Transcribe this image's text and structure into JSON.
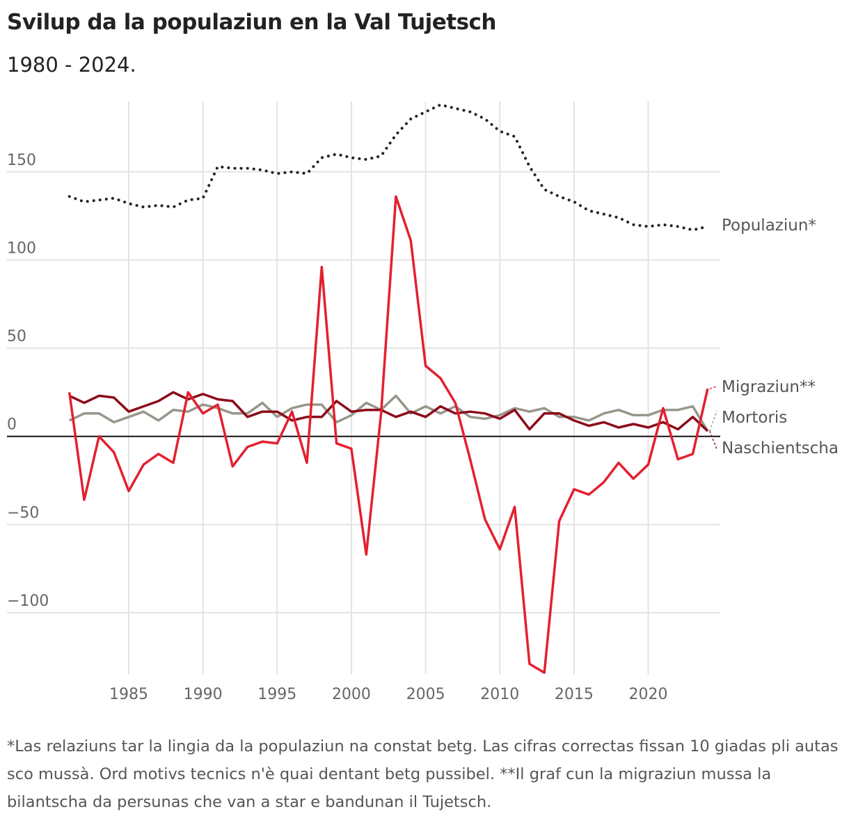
{
  "title": "Svilup da la populaziun en la Val Tujetsch",
  "subtitle": "1980 - 2024.",
  "footnote": "*Las relaziuns tar la lingia da la populaziun na constat betg. Las cifras correctas fissan 10 giadas pli autas sco mussà. Ord motivs tecnics n'è quai dentant betg pussibel. **Il graf cun la migraziun mussa la bilantscha da persunas che van a star e bandunan il Tujetsch.",
  "chart_data": {
    "type": "line",
    "title": "Svilup da la populaziun en la Val Tujetsch",
    "subtitle": "1980 - 2024.",
    "xlim": [
      1980,
      2025
    ],
    "ylim": [
      -135,
      190
    ],
    "x_ticks": [
      1985,
      1990,
      1995,
      2000,
      2005,
      2010,
      2015,
      2020
    ],
    "y_ticks": [
      -100,
      -50,
      0,
      50,
      100,
      150
    ],
    "y_tick_labels": [
      "−100",
      "−50",
      "0",
      "50",
      "100",
      "150"
    ],
    "grid": true,
    "legend": "direct labels at right end of lines",
    "x": [
      1981,
      1982,
      1983,
      1984,
      1985,
      1986,
      1987,
      1988,
      1989,
      1990,
      1991,
      1992,
      1993,
      1994,
      1995,
      1996,
      1997,
      1998,
      1999,
      2000,
      2001,
      2002,
      2003,
      2004,
      2005,
      2006,
      2007,
      2008,
      2009,
      2010,
      2011,
      2012,
      2013,
      2014,
      2015,
      2016,
      2017,
      2018,
      2019,
      2020,
      2021,
      2022,
      2023,
      2024
    ],
    "series": [
      {
        "name": "Populaziun*",
        "color": "#222222",
        "style": "dotted",
        "values": [
          136,
          133,
          134,
          135,
          132,
          130,
          131,
          130,
          134,
          135,
          153,
          152,
          152,
          151,
          149,
          150,
          149,
          158,
          160,
          158,
          157,
          159,
          171,
          180,
          184,
          188,
          186,
          184,
          180,
          173,
          170,
          153,
          140,
          136,
          133,
          128,
          126,
          124,
          120,
          119,
          120,
          119,
          117,
          119
        ]
      },
      {
        "name": "Migraziun**",
        "color": "#e3202f",
        "style": "solid",
        "values": [
          25,
          -36,
          0,
          -9,
          -31,
          -16,
          -10,
          -15,
          25,
          13,
          18,
          -17,
          -6,
          -3,
          -4,
          14,
          -15,
          96,
          -4,
          -7,
          -67,
          13,
          136,
          111,
          40,
          33,
          19,
          -13,
          -47,
          -64,
          -40,
          -129,
          -134,
          -48,
          -30,
          -33,
          -26,
          -15,
          -24,
          -16,
          16,
          -13,
          -10,
          27
        ]
      },
      {
        "name": "Mortoris",
        "color": "#98968a",
        "style": "solid",
        "values": [
          9,
          13,
          13,
          8,
          11,
          14,
          9,
          15,
          14,
          18,
          16,
          13,
          13,
          19,
          11,
          16,
          18,
          18,
          8,
          12,
          19,
          15,
          23,
          13,
          17,
          13,
          17,
          11,
          10,
          12,
          16,
          14,
          16,
          11,
          11,
          9,
          13,
          15,
          12,
          12,
          15,
          15,
          17,
          3
        ]
      },
      {
        "name": "Naschientscha",
        "color": "#8c0b1a",
        "style": "solid",
        "values": [
          23,
          19,
          23,
          22,
          14,
          17,
          20,
          25,
          21,
          24,
          21,
          20,
          11,
          14,
          14,
          9,
          11,
          11,
          20,
          14,
          15,
          15,
          11,
          14,
          11,
          17,
          13,
          14,
          13,
          10,
          15,
          4,
          13,
          13,
          9,
          6,
          8,
          5,
          7,
          5,
          8,
          4,
          11,
          3
        ]
      }
    ]
  }
}
